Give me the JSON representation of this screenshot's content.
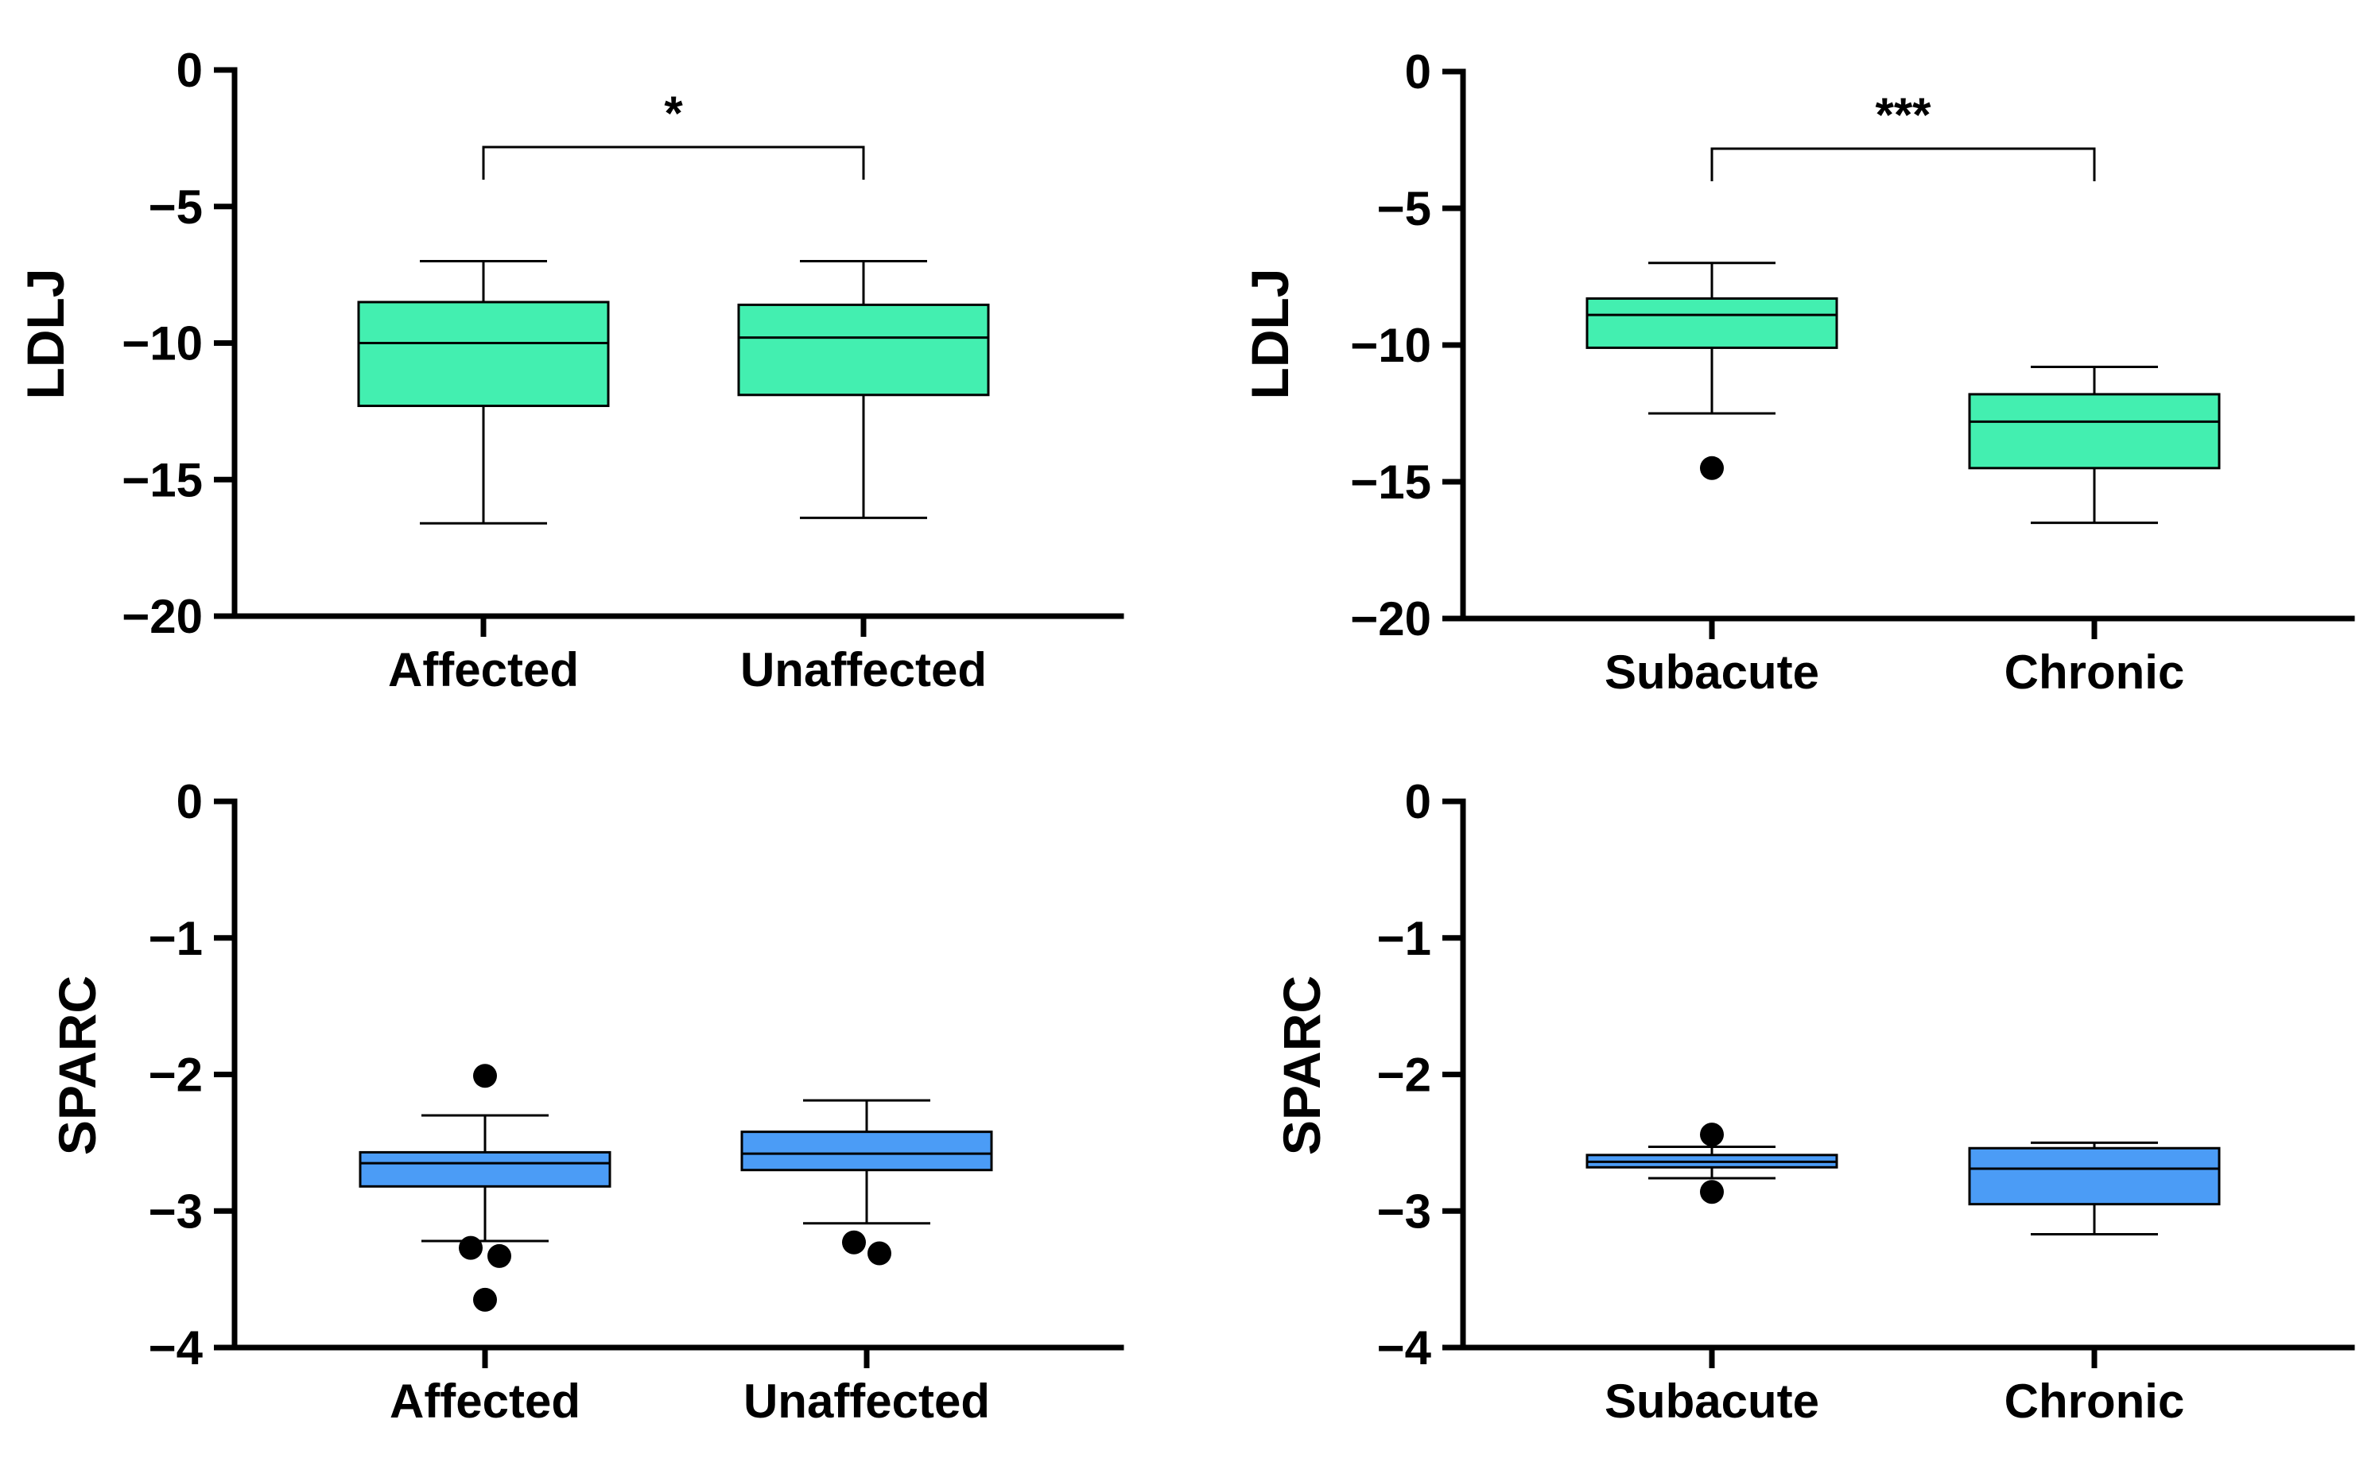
{
  "chart_data": [
    {
      "type": "box",
      "ylabel": "LDLJ",
      "ylim": [
        -20,
        0
      ],
      "yticks": [
        0,
        -5,
        -10,
        -15,
        -20
      ],
      "ytick_labels": [
        "0",
        "−5",
        "−10",
        "−15",
        "−20"
      ],
      "box_color": "#43efb0",
      "categories": [
        "Affected",
        "Unaffected"
      ],
      "boxes": [
        {
          "whisker_low": -16.6,
          "q1": -12.3,
          "median": -10.0,
          "q3": -8.5,
          "whisker_high": -7.0,
          "outliers": []
        },
        {
          "whisker_low": -16.4,
          "q1": -11.9,
          "median": -9.8,
          "q3": -8.6,
          "whisker_high": -7.0,
          "outliers": []
        }
      ],
      "significance": {
        "label": "*",
        "between": [
          0,
          1
        ]
      }
    },
    {
      "type": "box",
      "ylabel": "LDLJ",
      "ylim": [
        -20,
        0
      ],
      "yticks": [
        0,
        -5,
        -10,
        -15,
        -20
      ],
      "ytick_labels": [
        "0",
        "−5",
        "−10",
        "−15",
        "−20"
      ],
      "box_color": "#43efb0",
      "categories": [
        "Subacute",
        "Chronic"
      ],
      "boxes": [
        {
          "whisker_low": -12.5,
          "q1": -10.1,
          "median": -8.9,
          "q3": -8.3,
          "whisker_high": -7.0,
          "outliers": [
            -14.5
          ]
        },
        {
          "whisker_low": -16.5,
          "q1": -14.5,
          "median": -12.8,
          "q3": -11.8,
          "whisker_high": -10.8,
          "outliers": []
        }
      ],
      "significance": {
        "label": "***",
        "between": [
          0,
          1
        ]
      }
    },
    {
      "type": "box",
      "ylabel": "SPARC",
      "ylim": [
        -4,
        0
      ],
      "yticks": [
        0,
        -1,
        -2,
        -3,
        -4
      ],
      "ytick_labels": [
        "0",
        "−1",
        "−2",
        "−3",
        "−4"
      ],
      "box_color": "#4b9cf6",
      "categories": [
        "Affected",
        "Unaffected"
      ],
      "boxes": [
        {
          "whisker_low": -3.22,
          "q1": -2.82,
          "median": -2.65,
          "q3": -2.57,
          "whisker_high": -2.3,
          "outliers": [
            -2.01,
            -3.27,
            -3.33,
            -3.65
          ]
        },
        {
          "whisker_low": -3.09,
          "q1": -2.7,
          "median": -2.58,
          "q3": -2.42,
          "whisker_high": -2.19,
          "outliers": [
            -3.23,
            -3.31
          ]
        }
      ],
      "significance": null
    },
    {
      "type": "box",
      "ylabel": "SPARC",
      "ylim": [
        -4,
        0
      ],
      "yticks": [
        0,
        -1,
        -2,
        -3,
        -4
      ],
      "ytick_labels": [
        "0",
        "−1",
        "−2",
        "−3",
        "−4"
      ],
      "box_color": "#4b9cf6",
      "categories": [
        "Subacute",
        "Chronic"
      ],
      "boxes": [
        {
          "whisker_low": -2.76,
          "q1": -2.68,
          "median": -2.64,
          "q3": -2.59,
          "whisker_high": -2.53,
          "outliers": [
            -2.44,
            -2.86
          ]
        },
        {
          "whisker_low": -3.17,
          "q1": -2.95,
          "median": -2.69,
          "q3": -2.54,
          "whisker_high": -2.5,
          "outliers": []
        }
      ],
      "significance": null
    }
  ]
}
